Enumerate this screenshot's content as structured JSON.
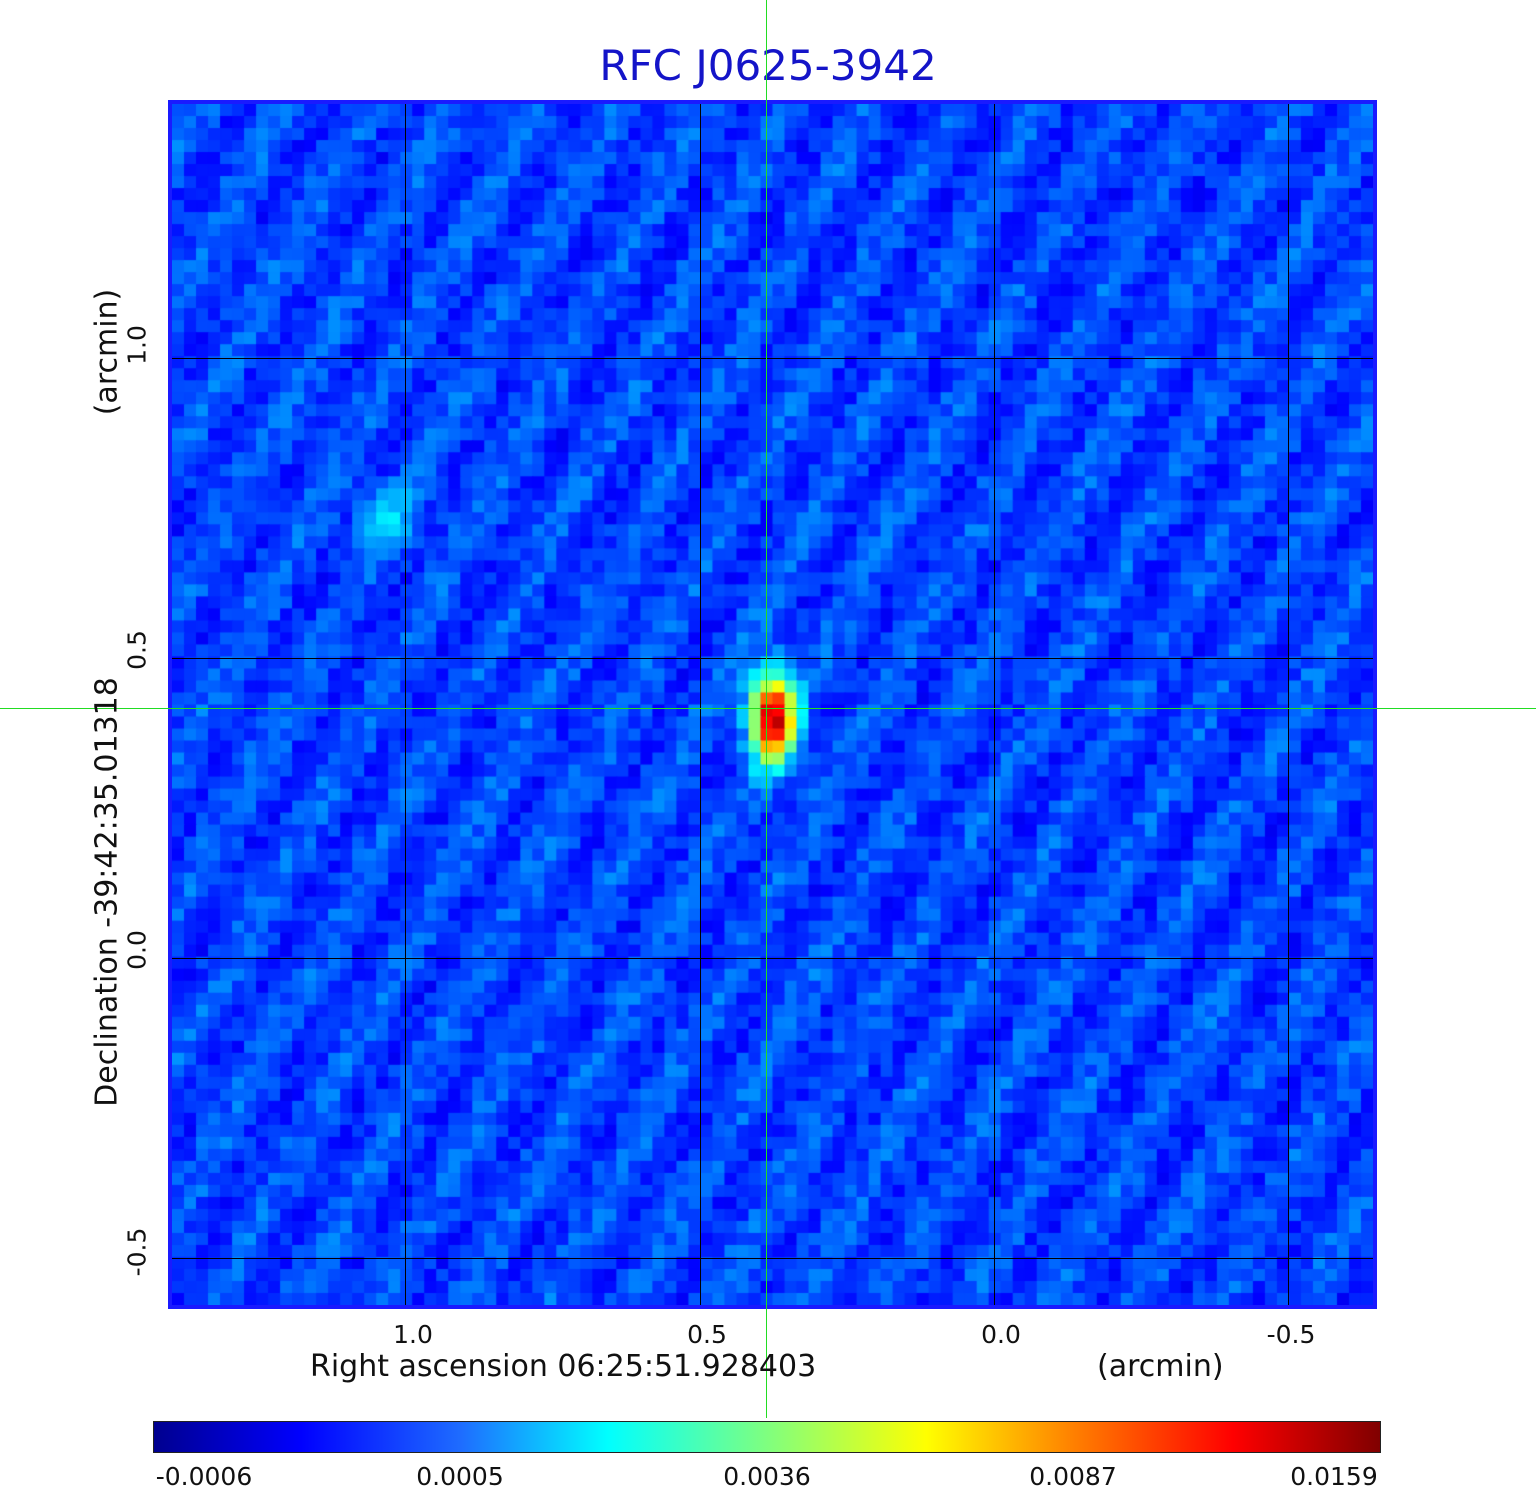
{
  "title": "RFC J0625-3942",
  "x_axis": {
    "label": "Right ascension  06:25:51.928403",
    "unit": "(arcmin)",
    "ticks": [
      "1.0",
      "0.5",
      "0.0",
      "-0.5"
    ]
  },
  "y_axis": {
    "label": "Declination  -39:42:35.01318",
    "unit": "(arcmin)",
    "ticks": [
      "1.0",
      "0.5",
      "0.0",
      "-0.5"
    ]
  },
  "colorbar": {
    "colormap": "jet",
    "labels": [
      "-0.0006",
      "0.0005",
      "0.0036",
      "0.0087",
      "0.0159"
    ]
  },
  "colors": {
    "title": "#1414c8",
    "frame": "#1a1aff",
    "crosshair": "#22dd22",
    "grid": "#000000"
  }
}
